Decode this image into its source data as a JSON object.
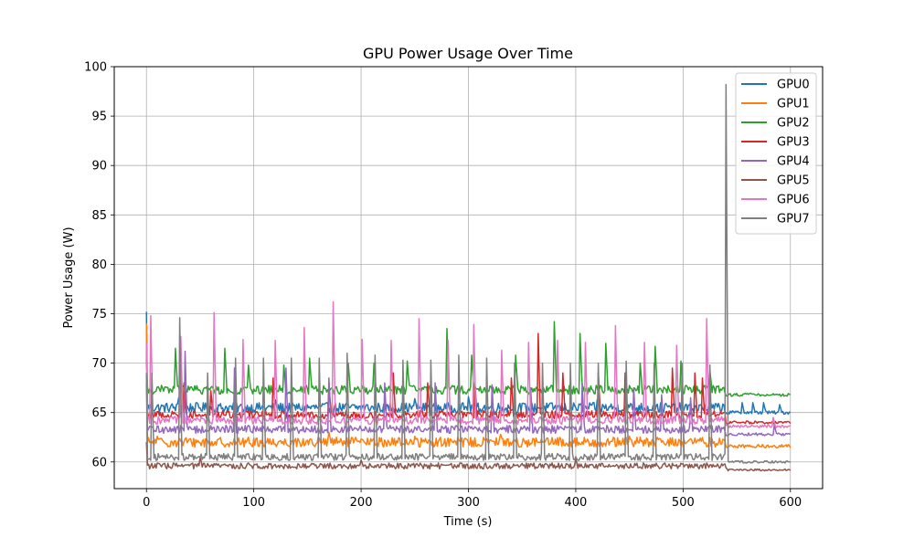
{
  "chart_data": {
    "type": "line",
    "title": "GPU Power Usage Over Time",
    "xlabel": "Time (s)",
    "ylabel": "Power Usage (W)",
    "xlim": [
      -30,
      630
    ],
    "ylim": [
      57.3,
      100
    ],
    "xticks": [
      0,
      100,
      200,
      300,
      400,
      500,
      600
    ],
    "yticks": [
      60,
      65,
      70,
      75,
      80,
      85,
      90,
      95,
      100
    ],
    "grid": true,
    "legend_position": "top-right",
    "series": [
      {
        "name": "GPU0",
        "color": "#1f77b4",
        "base": 65.5,
        "noise": 0.5,
        "tail_base": 65.0,
        "start": 75.2,
        "spikes": [
          [
            30,
            66.5
          ],
          [
            120,
            66.3
          ],
          [
            250,
            66.4
          ],
          [
            300,
            66.6
          ],
          [
            420,
            66.3
          ],
          [
            555,
            66.0
          ],
          [
            565,
            66.0
          ],
          [
            575,
            66.0
          ],
          [
            590,
            65.8
          ]
        ]
      },
      {
        "name": "GPU1",
        "color": "#ff7f0e",
        "base": 62.0,
        "noise": 0.5,
        "tail_base": 61.6,
        "start": 74.0,
        "spikes": [
          [
            10,
            62.6
          ],
          [
            170,
            63.0
          ],
          [
            250,
            62.6
          ],
          [
            330,
            62.8
          ],
          [
            450,
            62.6
          ]
        ]
      },
      {
        "name": "GPU2",
        "color": "#2ca02c",
        "base": 67.3,
        "noise": 0.45,
        "tail_base": 66.8,
        "start": 70.5,
        "spikes": [
          [
            27,
            71.5
          ],
          [
            73,
            71.5
          ],
          [
            95,
            69.8
          ],
          [
            128,
            69.8
          ],
          [
            152,
            70.5
          ],
          [
            188,
            70.0
          ],
          [
            212,
            70.0
          ],
          [
            243,
            70.2
          ],
          [
            280,
            73.5
          ],
          [
            303,
            70.8
          ],
          [
            344,
            70.8
          ],
          [
            380,
            74.2
          ],
          [
            404,
            73.0
          ],
          [
            428,
            72.0
          ],
          [
            460,
            70.0
          ],
          [
            474,
            71.7
          ],
          [
            498,
            70.2
          ],
          [
            525,
            69.2
          ]
        ]
      },
      {
        "name": "GPU3",
        "color": "#d62728",
        "base": 64.8,
        "noise": 0.4,
        "tail_base": 64.0,
        "start": 72.0,
        "spikes": [
          [
            35,
            68.0
          ],
          [
            60,
            67.2
          ],
          [
            118,
            68.5
          ],
          [
            170,
            68.0
          ],
          [
            230,
            69.0
          ],
          [
            262,
            68.0
          ],
          [
            306,
            68.0
          ],
          [
            340,
            68.5
          ],
          [
            365,
            73.0
          ],
          [
            388,
            69.0
          ],
          [
            421,
            69.0
          ],
          [
            446,
            69.0
          ],
          [
            490,
            69.5
          ],
          [
            511,
            69.0
          ],
          [
            518,
            68.5
          ]
        ]
      },
      {
        "name": "GPU4",
        "color": "#9467bd",
        "base": 63.3,
        "noise": 0.4,
        "tail_base": 62.8,
        "start": 68.0,
        "spikes": [
          [
            36,
            71.2
          ],
          [
            82,
            69.5
          ],
          [
            130,
            69.5
          ],
          [
            170,
            68.5
          ],
          [
            222,
            68.0
          ],
          [
            269,
            68.0
          ],
          [
            322,
            67.8
          ],
          [
            358,
            67.5
          ],
          [
            406,
            68.0
          ],
          [
            454,
            67.5
          ],
          [
            480,
            66.8
          ],
          [
            507,
            66.5
          ],
          [
            585,
            63.8
          ]
        ]
      },
      {
        "name": "GPU5",
        "color": "#8c564b",
        "base": 59.6,
        "noise": 0.3,
        "tail_base": 59.2,
        "start": 62.0,
        "spikes": [
          [
            50,
            60.5
          ],
          [
            200,
            60.2
          ],
          [
            400,
            60.3
          ],
          [
            540,
            59.4
          ]
        ]
      },
      {
        "name": "GPU6",
        "color": "#e377c2",
        "base": 64.2,
        "noise": 0.4,
        "tail_base": 63.6,
        "start": 72.0,
        "spikes": [
          [
            4,
            74.8
          ],
          [
            32,
            72.7
          ],
          [
            63,
            75.1
          ],
          [
            90,
            72.4
          ],
          [
            120,
            72.3
          ],
          [
            147,
            73.6
          ],
          [
            174,
            76.2
          ],
          [
            201,
            72.4
          ],
          [
            228,
            72.3
          ],
          [
            254,
            74.5
          ],
          [
            281,
            72.3
          ],
          [
            305,
            73.9
          ],
          [
            331,
            71.3
          ],
          [
            356,
            72.1
          ],
          [
            383,
            72.3
          ],
          [
            409,
            72.1
          ],
          [
            437,
            73.8
          ],
          [
            464,
            72.1
          ],
          [
            494,
            71.8
          ],
          [
            522,
            74.5
          ],
          [
            584,
            64.5
          ]
        ]
      },
      {
        "name": "GPU7",
        "color": "#7f7f7f",
        "base": 60.5,
        "noise": 0.35,
        "tail_base": 60.0,
        "start": 69.0,
        "spikes": [
          [
            5,
            69.0
          ],
          [
            31,
            74.6
          ],
          [
            57,
            69.0
          ],
          [
            83,
            70.5
          ],
          [
            109,
            70.5
          ],
          [
            135,
            70.5
          ],
          [
            161,
            70.5
          ],
          [
            187,
            71.0
          ],
          [
            213,
            70.8
          ],
          [
            239,
            70.3
          ],
          [
            265,
            70.3
          ],
          [
            291,
            70.8
          ],
          [
            317,
            70.5
          ],
          [
            343,
            70.0
          ],
          [
            369,
            70.0
          ],
          [
            395,
            70.0
          ],
          [
            421,
            70.0
          ],
          [
            447,
            70.2
          ],
          [
            473,
            70.0
          ],
          [
            499,
            70.0
          ],
          [
            525,
            69.8
          ],
          [
            540,
            98.2
          ]
        ]
      }
    ]
  }
}
